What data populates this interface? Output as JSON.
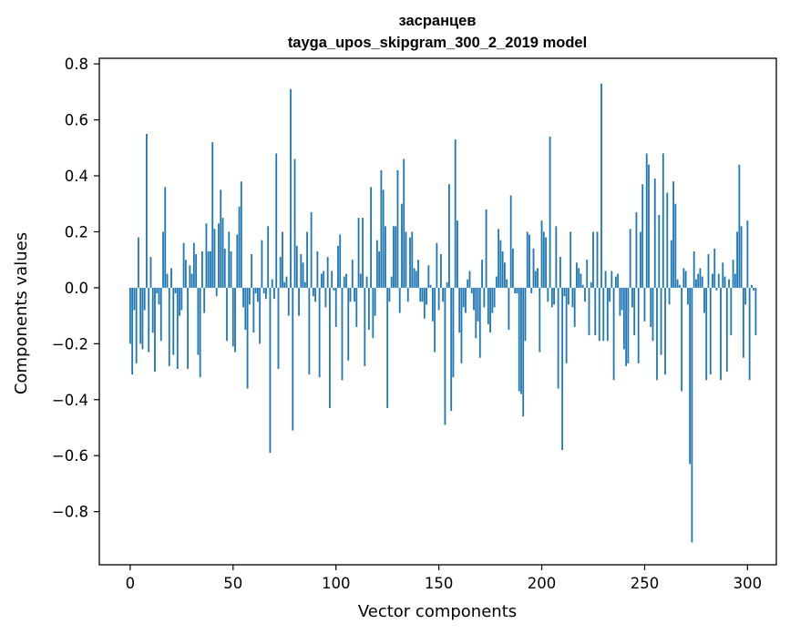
{
  "chart_data": {
    "type": "bar",
    "title": "засранцев",
    "subtitle": "tayga_upos_skipgram_300_2_2019 model",
    "xlabel": "Vector components",
    "ylabel": "Components values",
    "xlim": [
      -15,
      314
    ],
    "ylim": [
      -0.99,
      0.82
    ],
    "xticks": [
      0,
      50,
      100,
      150,
      200,
      250,
      300
    ],
    "xtick_labels": [
      "0",
      "50",
      "100",
      "150",
      "200",
      "250",
      "300"
    ],
    "yticks": [
      -0.8,
      -0.6,
      -0.4,
      -0.2,
      0.0,
      0.2,
      0.4,
      0.6,
      0.8
    ],
    "ytick_labels": [
      "−0.8",
      "−0.6",
      "−0.4",
      "−0.2",
      "0.0",
      "0.2",
      "0.4",
      "0.6",
      "0.8"
    ],
    "bar_color": "#1f77b4",
    "grid": false,
    "values": [
      -0.2,
      -0.31,
      -0.08,
      -0.27,
      0.18,
      -0.2,
      -0.22,
      -0.08,
      0.55,
      -0.23,
      0.11,
      -0.16,
      -0.3,
      -0.02,
      -0.06,
      -0.19,
      0.2,
      0.36,
      0.05,
      -0.28,
      0.07,
      -0.24,
      -0.02,
      -0.29,
      -0.1,
      -0.08,
      0.16,
      0.1,
      -0.29,
      0.08,
      0.05,
      0.16,
      0.12,
      -0.24,
      -0.32,
      0.13,
      -0.09,
      0.23,
      0.13,
      0.13,
      0.52,
      0.21,
      -0.03,
      0.23,
      0.35,
      0.25,
      0.14,
      -0.19,
      0.2,
      0.13,
      -0.21,
      -0.23,
      0.19,
      0.29,
      0.38,
      -0.07,
      -0.15,
      -0.36,
      -0.06,
      0.12,
      -0.16,
      -0.02,
      -0.05,
      -0.2,
      0.17,
      -0.02,
      -0.04,
      0.22,
      -0.59,
      0.03,
      -0.04,
      0.48,
      -0.29,
      0.11,
      0.2,
      0.02,
      0.04,
      -0.1,
      0.71,
      -0.51,
      0.46,
      0.15,
      -0.1,
      0.12,
      0.09,
      0.02,
      0.2,
      -0.31,
      0.27,
      -0.03,
      -0.05,
      0.13,
      -0.32,
      0.05,
      0.06,
      -0.07,
      0.11,
      -0.43,
      0.06,
      -0.01,
      -0.14,
      0.15,
      0.19,
      -0.33,
      0.04,
      0.05,
      -0.26,
      -0.05,
      0.1,
      -0.05,
      -0.14,
      0.25,
      0.05,
      0.25,
      -0.28,
      0.04,
      -0.15,
      0.36,
      -0.18,
      -0.1,
      0.17,
      0.13,
      0.42,
      0.35,
      0.22,
      -0.43,
      -0.05,
      0.04,
      0.22,
      0.22,
      0.42,
      -0.09,
      0.3,
      0.46,
      0.2,
      -0.05,
      0.18,
      0.2,
      0.07,
      0.06,
      0.1,
      -0.05,
      -0.05,
      -0.11,
      -0.06,
      0.08,
      0.01,
      -0.12,
      -0.23,
      0.16,
      -0.08,
      0.12,
      -0.05,
      -0.49,
      0.02,
      0.37,
      -0.44,
      -0.32,
      0.53,
      0.24,
      -0.16,
      -0.27,
      -0.07,
      -0.09,
      0.03,
      0.06,
      -0.02,
      -0.08,
      -0.18,
      -0.12,
      -0.25,
      0.1,
      -0.07,
      0.28,
      -0.13,
      -0.16,
      -0.09,
      -0.07,
      0.04,
      0.21,
      0.17,
      0.13,
      0.09,
      0.03,
      -0.15,
      0.33,
      0.14,
      -0.02,
      -0.02,
      -0.37,
      -0.38,
      -0.46,
      -0.19,
      0.2,
      0.19,
      -0.02,
      0.14,
      0.06,
      0.07,
      -0.23,
      0.24,
      0.2,
      0.18,
      -0.05,
      0.54,
      -0.07,
      -0.06,
      0.22,
      -0.36,
      0.11,
      -0.58,
      -0.03,
      -0.27,
      -0.06,
      0.2,
      -0.07,
      -0.14,
      0.09,
      0.07,
      0.05,
      0.01,
      -0.05,
      0.1,
      -0.17,
      0.02,
      0.2,
      -0.17,
      0.2,
      -0.19,
      0.73,
      -0.19,
      0.06,
      -0.19,
      -0.05,
      0.06,
      -0.33,
      0.04,
      0.05,
      -0.1,
      -0.08,
      -0.22,
      -0.28,
      -0.27,
      0.21,
      -0.07,
      -0.17,
      0.27,
      -0.27,
      0.2,
      0.37,
      -0.12,
      0.48,
      0.44,
      -0.14,
      -0.19,
      0.39,
      -0.33,
      0.26,
      -0.24,
      0.48,
      -0.31,
      0.34,
      -0.06,
      0.17,
      0.38,
      0.3,
      0.03,
      0.01,
      -0.37,
      0.07,
      0.06,
      -0.06,
      -0.63,
      -0.91,
      0.13,
      0.03,
      0.05,
      0.07,
      0.04,
      -0.09,
      -0.33,
      0.12,
      -0.31,
      0.05,
      0.14,
      -0.01,
      0.05,
      -0.33,
      0.09,
      0.04,
      -0.3,
      0.03,
      -0.17,
      0.1,
      0.05,
      0.2,
      0.44,
      0.22,
      -0.25,
      -0.06,
      0.24,
      -0.33,
      0.01,
      -0.01,
      -0.17
    ]
  }
}
